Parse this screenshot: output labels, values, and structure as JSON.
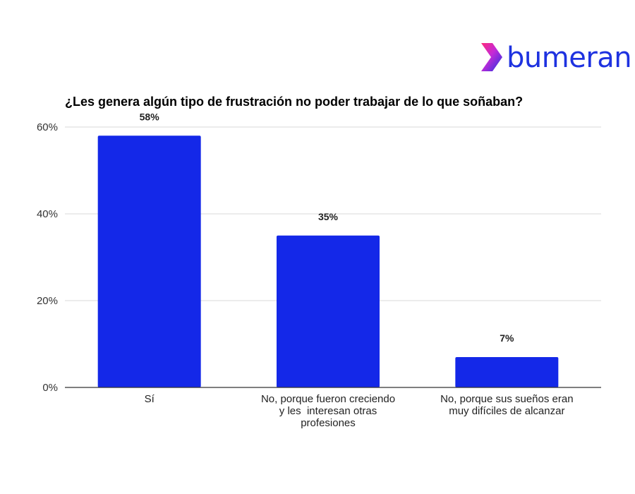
{
  "brand": {
    "name": "bumeran",
    "logo_icon": "bumeran-chevron-logo",
    "color": "#1e32e0"
  },
  "chart_data": {
    "type": "bar",
    "title": "¿Les genera algún tipo de frustración no poder trabajar de lo que soñaban?",
    "xlabel": "",
    "ylabel": "",
    "categories": [
      "Sí",
      "No, porque fueron creciendo y les  interesan otras profesiones",
      "No, porque sus sueños eran muy difíciles de alcanzar"
    ],
    "category_lines": [
      [
        "Sí"
      ],
      [
        "No, porque fueron creciendo",
        "y les  interesan otras",
        "profesiones"
      ],
      [
        "No, porque sus sueños eran",
        "muy difíciles de alcanzar"
      ]
    ],
    "values": [
      58,
      35,
      7
    ],
    "data_labels": [
      "58%",
      "35%",
      "7%"
    ],
    "ylim": [
      0,
      60
    ],
    "yticks": [
      0,
      20,
      40,
      60
    ],
    "ytick_labels": [
      "0%",
      "20%",
      "40%",
      "60%"
    ],
    "grid": true,
    "legend": "none",
    "bar_color": "#1428e8",
    "grid_color": "#d9d9d9",
    "axis_color": "#333333"
  }
}
